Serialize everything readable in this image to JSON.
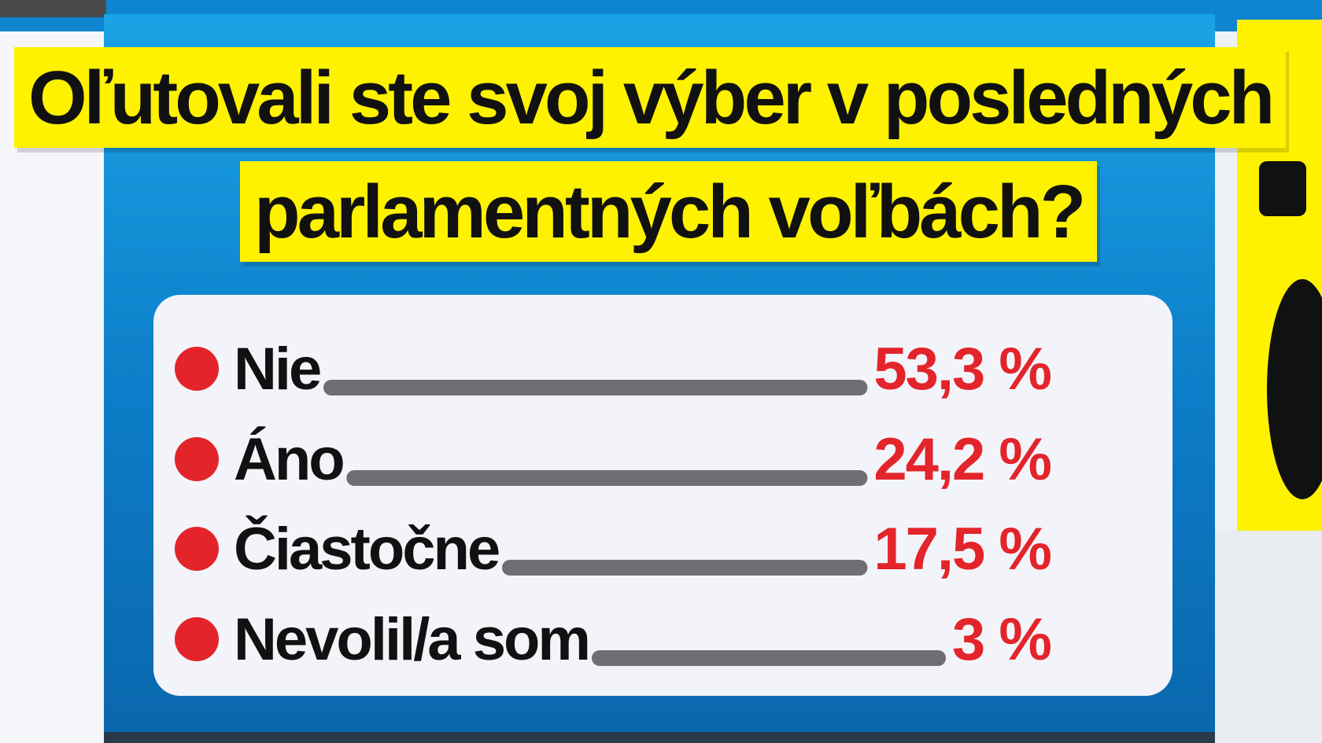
{
  "title": {
    "line1": "Oľutovali ste svoj výber v posledných",
    "line2": "parlamentných voľbách?"
  },
  "colors": {
    "dot": "#e3242b",
    "bar": "#6d6f73",
    "value": "#e3242b",
    "title_bg": "#fff200",
    "panel": "#0c7cc7"
  },
  "chart_data": {
    "type": "bar",
    "title": "Oľutovali ste svoj výber v posledných parlamentných voľbách?",
    "unit": "%",
    "categories": [
      "Nie",
      "Áno",
      "Čiastočne",
      "Nevolil/a som"
    ],
    "values": [
      53.3,
      24.2,
      17.5,
      3
    ],
    "value_labels": [
      "53,3 %",
      "24,2 %",
      "17,5 %",
      "3 %"
    ]
  }
}
